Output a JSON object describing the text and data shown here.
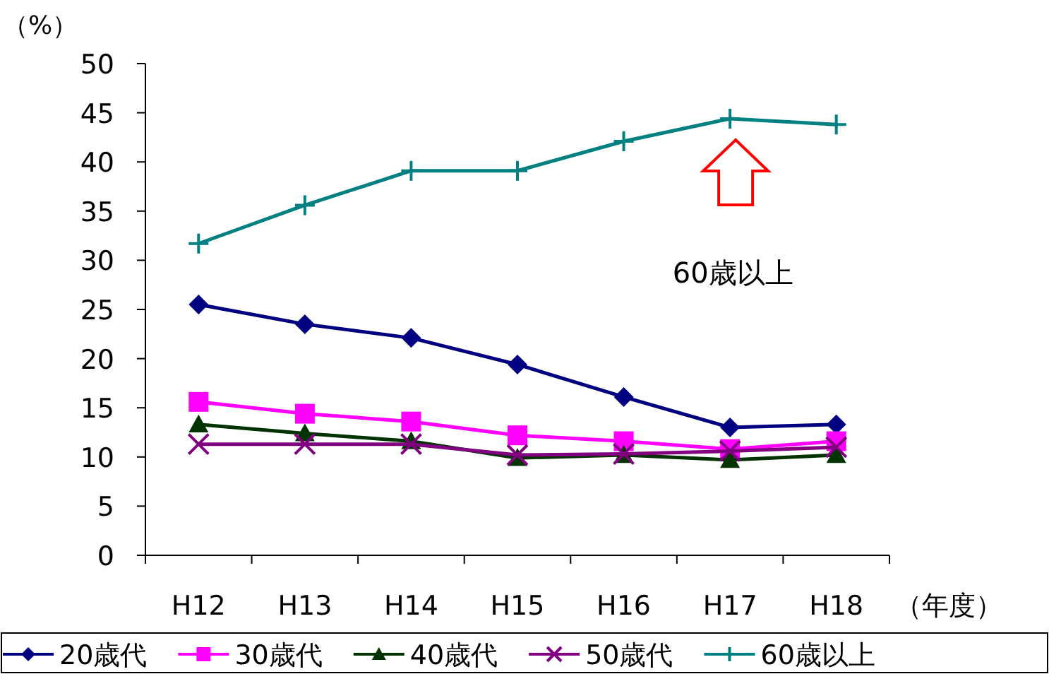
{
  "chart_data": {
    "type": "line",
    "xlabel": "（年度）",
    "ylabel": "（%）",
    "categories": [
      "H12",
      "H13",
      "H14",
      "H15",
      "H16",
      "H17",
      "H18"
    ],
    "ylim": [
      0,
      50
    ],
    "yticks": [
      0,
      5,
      10,
      15,
      20,
      25,
      30,
      35,
      40,
      45,
      50
    ],
    "grid": false,
    "legend": "bottom",
    "annotations": [
      "60歳以上"
    ],
    "series": [
      {
        "name": "20歳代",
        "color": "#000080",
        "marker": "diamond",
        "values": [
          25.5,
          23.5,
          22.1,
          19.4,
          16.1,
          13.0,
          13.3
        ]
      },
      {
        "name": "30歳代",
        "color": "#ff00ff",
        "marker": "square",
        "values": [
          15.6,
          14.4,
          13.6,
          12.2,
          11.6,
          10.8,
          11.6
        ]
      },
      {
        "name": "40歳代",
        "color": "#003300",
        "marker": "triangle",
        "values": [
          13.3,
          12.4,
          11.6,
          9.9,
          10.2,
          9.7,
          10.2
        ]
      },
      {
        "name": "50歳代",
        "color": "#800080",
        "marker": "cross",
        "values": [
          11.3,
          11.3,
          11.3,
          10.2,
          10.3,
          10.6,
          11.0
        ]
      },
      {
        "name": "60歳以上",
        "color": "#008080",
        "marker": "plus",
        "values": [
          31.7,
          35.6,
          39.1,
          39.1,
          42.1,
          44.4,
          43.8
        ]
      }
    ]
  }
}
